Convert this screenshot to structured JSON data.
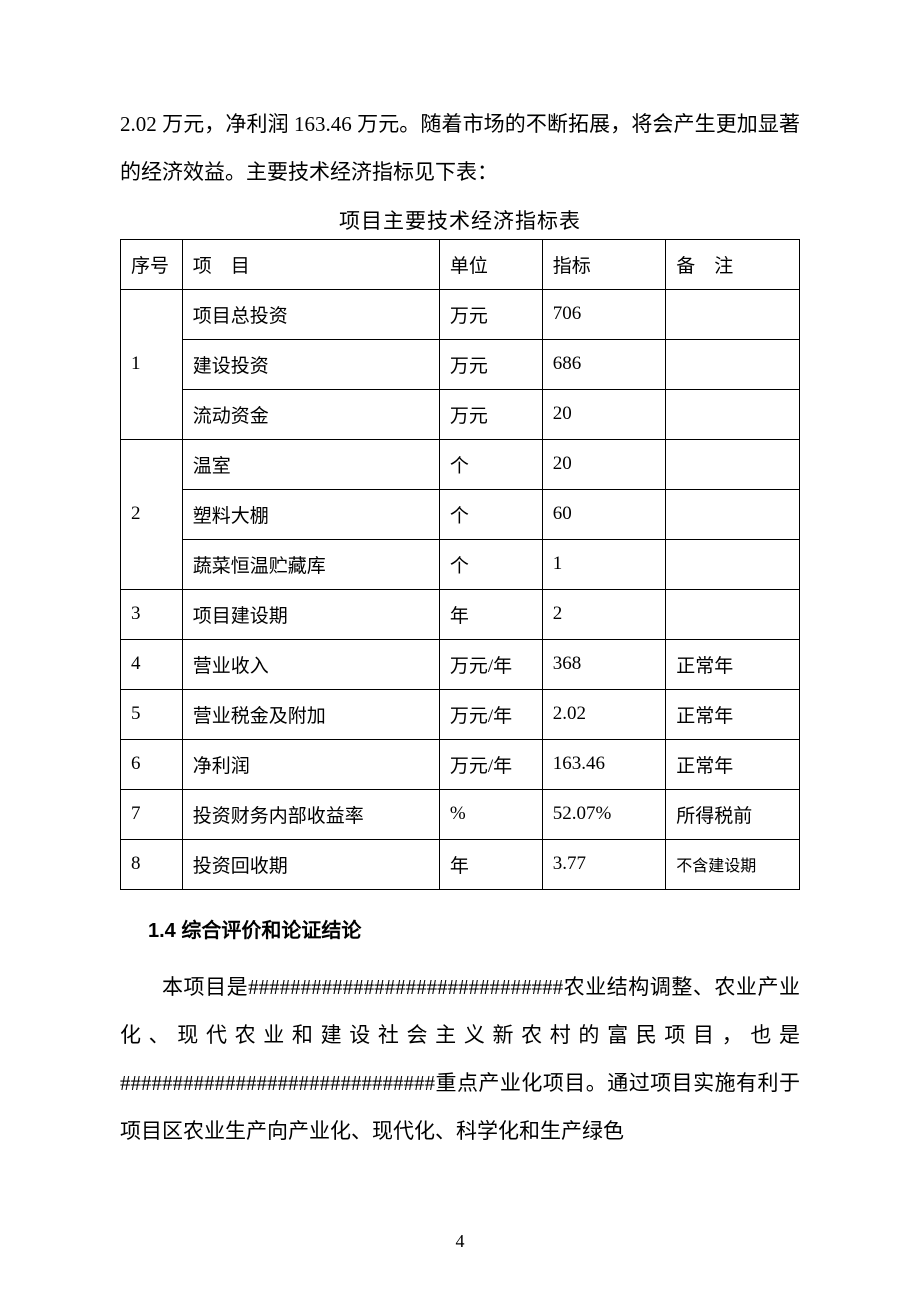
{
  "intro_paragraph": "2.02 万元，净利润 163.46 万元。随着市场的不断拓展，将会产生更加显著的经济效益。主要技术经济指标见下表：",
  "table_title": "项目主要技术经济指标表",
  "headers": {
    "seq": "序号",
    "item_prefix": "项",
    "item_suffix": "目",
    "unit": "单位",
    "indicator": "指标",
    "remark_prefix": "备",
    "remark_suffix": "注"
  },
  "rows": [
    {
      "seq": "1",
      "rowspan": 3,
      "item": "项目总投资",
      "unit": "万元",
      "indicator": "706",
      "remark": ""
    },
    {
      "seq": "",
      "item": "建设投资",
      "unit": "万元",
      "indicator": "686",
      "remark": ""
    },
    {
      "seq": "",
      "item": "流动资金",
      "unit": "万元",
      "indicator": "20",
      "remark": ""
    },
    {
      "seq": "2",
      "rowspan": 3,
      "item": "温室",
      "unit": "个",
      "indicator": "20",
      "remark": ""
    },
    {
      "seq": "",
      "item": "塑料大棚",
      "unit": "个",
      "indicator": "60",
      "remark": ""
    },
    {
      "seq": "",
      "item": "蔬菜恒温贮藏库",
      "unit": "个",
      "indicator": "1",
      "remark": ""
    },
    {
      "seq": "3",
      "rowspan": 1,
      "item": "项目建设期",
      "unit": "年",
      "indicator": "2",
      "remark": ""
    },
    {
      "seq": "4",
      "rowspan": 1,
      "item": "营业收入",
      "unit": "万元/年",
      "indicator": "368",
      "remark": "正常年"
    },
    {
      "seq": "5",
      "rowspan": 1,
      "item": "营业税金及附加",
      "unit": "万元/年",
      "indicator": "2.02",
      "remark": "正常年"
    },
    {
      "seq": "6",
      "rowspan": 1,
      "item": "净利润",
      "unit": "万元/年",
      "indicator": "163.46",
      "remark": "正常年"
    },
    {
      "seq": "7",
      "rowspan": 1,
      "item": "投资财务内部收益率",
      "unit": "%",
      "indicator": "52.07%",
      "remark": "所得税前"
    },
    {
      "seq": "8",
      "rowspan": 1,
      "item": "投资回收期",
      "unit": "年",
      "indicator": "3.77",
      "remark": "不含建设期",
      "remark_small": true
    }
  ],
  "section_heading": "1.4 综合评价和论证结论",
  "body_paragraph": "本项目是##############################农业结构调整、农业产业化、现代农业和建设社会主义新农村的富民项目，也是##############################重点产业化项目。通过项目实施有利于项目区农业生产向产业化、现代化、科学化和生产绿色",
  "page_number": "4"
}
